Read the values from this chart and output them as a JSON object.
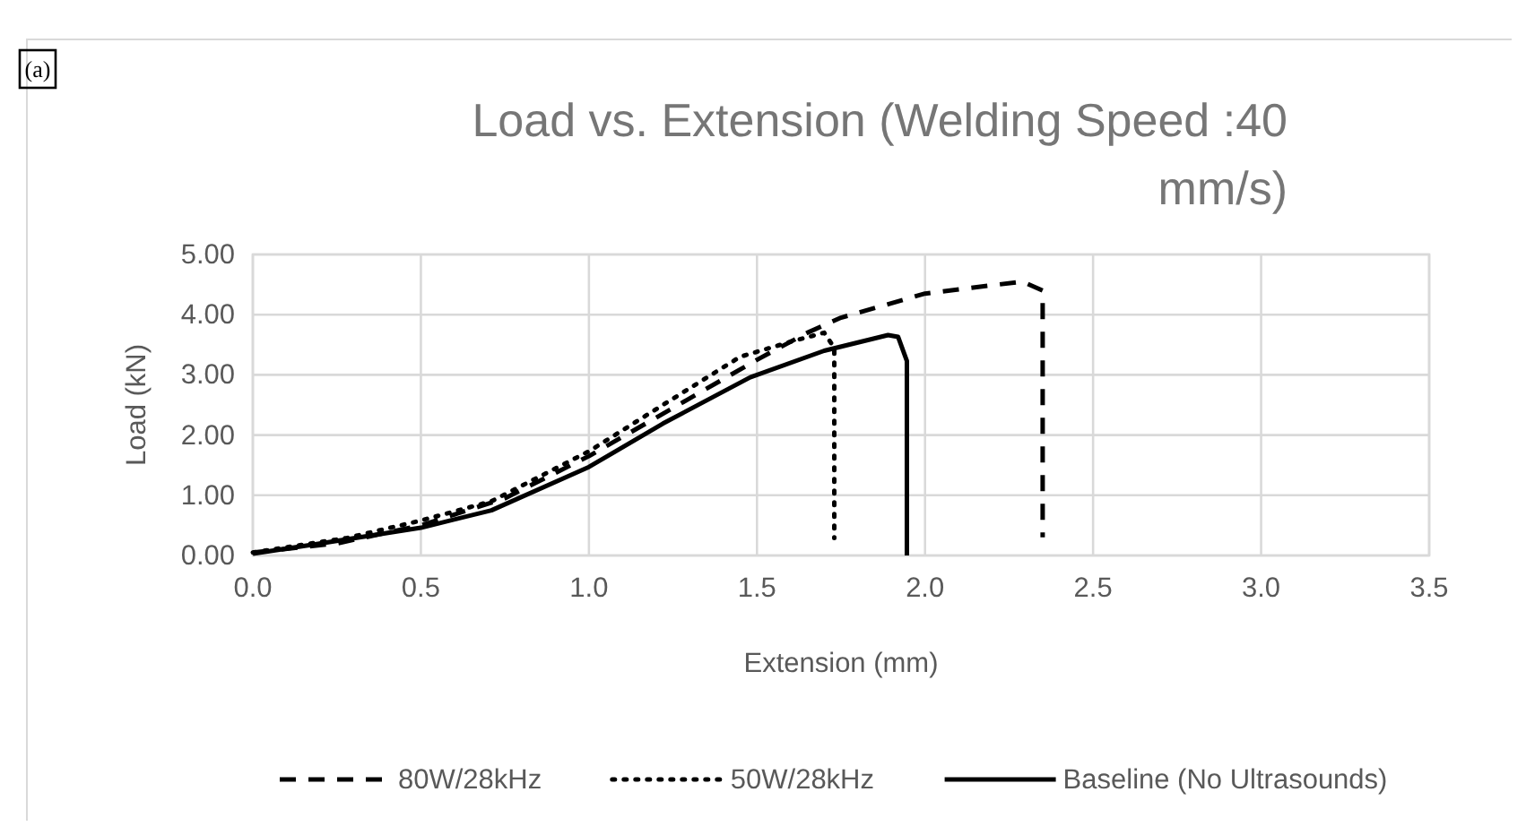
{
  "chart_data": {
    "type": "line",
    "title": "Load vs. Extension (Welding Speed :40 mm/s)",
    "xlabel": "Extension (mm)",
    "ylabel": "Load (kN)",
    "annotations": [
      "(a)"
    ],
    "xlim": [
      0,
      3.5
    ],
    "xticks": [
      {
        "value": 0,
        "label": "0.0"
      },
      {
        "value": 0.5,
        "label": "0.5"
      },
      {
        "value": 1,
        "label": "1.0"
      },
      {
        "value": 1.5,
        "label": "1.5"
      },
      {
        "value": 2,
        "label": "2.0"
      },
      {
        "value": 2.5,
        "label": "2.5"
      },
      {
        "value": 3,
        "label": "3.0"
      },
      {
        "value": 3.5,
        "label": "3.5"
      }
    ],
    "ylim": [
      0,
      5
    ],
    "yticks": [
      {
        "value": 0,
        "label": "0.00"
      },
      {
        "value": 1,
        "label": "1.00"
      },
      {
        "value": 2,
        "label": "2.00"
      },
      {
        "value": 3,
        "label": "3.00"
      },
      {
        "value": 4,
        "label": "4.00"
      },
      {
        "value": 5,
        "label": "5.00"
      }
    ],
    "grid": true,
    "legend": "bottom",
    "series": [
      {
        "name": "80W/28kHz",
        "color": "#000000",
        "line_style": "dashed",
        "x": [
          0,
          0.25,
          0.5,
          0.75,
          1.0,
          1.25,
          1.5,
          1.65,
          1.75,
          2.0,
          2.29,
          2.35,
          2.35
        ],
        "values": [
          0.05,
          0.2,
          0.5,
          0.95,
          1.65,
          2.45,
          3.25,
          3.7,
          3.95,
          4.35,
          4.55,
          4.4,
          0.3
        ]
      },
      {
        "name": "50W/28kHz",
        "color": "#000000",
        "line_style": "dotted",
        "x": [
          0,
          0.28,
          0.5,
          0.71,
          1.0,
          1.22,
          1.45,
          1.6,
          1.7,
          1.73,
          1.73
        ],
        "values": [
          0.05,
          0.29,
          0.58,
          0.9,
          1.73,
          2.5,
          3.3,
          3.55,
          3.7,
          3.45,
          0.29
        ]
      },
      {
        "name": "Baseline (No Ultrasounds)",
        "color": "#000000",
        "line_style": "solid",
        "x": [
          0,
          0.19,
          0.5,
          0.71,
          1.0,
          1.22,
          1.48,
          1.7,
          1.89,
          1.92,
          1.946,
          1.946
        ],
        "values": [
          0.03,
          0.19,
          0.46,
          0.75,
          1.47,
          2.19,
          2.96,
          3.4,
          3.66,
          3.63,
          3.23,
          0
        ]
      }
    ]
  }
}
